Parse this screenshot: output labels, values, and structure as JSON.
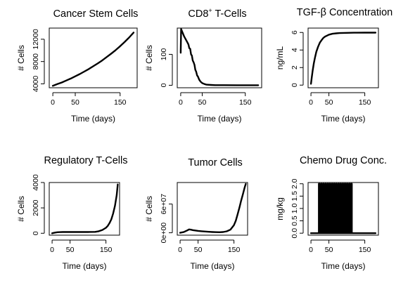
{
  "chart_data": [
    {
      "id": "csc",
      "type": "line",
      "title": "Cancer Stem Cells",
      "xlabel": "Time (days)",
      "ylabel": "# Cells",
      "xlim": [
        -8,
        188
      ],
      "ylim": [
        3300,
        14000
      ],
      "xticks": [
        0,
        50,
        150
      ],
      "xtick_labels": [
        "0",
        "50",
        "150"
      ],
      "yticks": [
        4000,
        8000,
        12000
      ],
      "ytick_labels": [
        "4000",
        "8000",
        "12000"
      ],
      "series": [
        {
          "x": [
            0,
            10,
            20,
            30,
            40,
            50,
            60,
            70,
            80,
            90,
            100,
            110,
            120,
            130,
            140,
            150,
            160,
            170,
            180
          ],
          "y": [
            3650,
            3950,
            4250,
            4600,
            4950,
            5350,
            5750,
            6200,
            6650,
            7150,
            7650,
            8200,
            8800,
            9400,
            10050,
            10750,
            11500,
            12300,
            13200
          ]
        }
      ]
    },
    {
      "id": "cd8",
      "type": "line",
      "title": "CD8",
      "title_sup": "+",
      "title_suffix": " T-Cells",
      "xlabel": "Time (days)",
      "ylabel": "# Cells",
      "xlim": [
        -8,
        188
      ],
      "ylim": [
        -8,
        185
      ],
      "xticks": [
        0,
        50,
        150
      ],
      "xtick_labels": [
        "0",
        "50",
        "150"
      ],
      "yticks": [
        0,
        100
      ],
      "ytick_labels": [
        "0",
        "100"
      ],
      "series": [
        {
          "x": [
            0,
            1,
            3,
            5,
            8,
            12,
            15,
            18,
            20,
            22,
            24,
            26,
            28,
            30,
            32,
            34,
            36,
            38,
            40,
            43,
            46,
            50,
            55,
            60,
            70,
            80,
            100,
            130,
            160,
            180
          ],
          "y": [
            105,
            182,
            175,
            168,
            158,
            148,
            140,
            132,
            120,
            118,
            100,
            96,
            80,
            74,
            66,
            50,
            44,
            32,
            28,
            18,
            12,
            7,
            4,
            2,
            1,
            0.5,
            0.3,
            0.2,
            0.2,
            0.2
          ]
        }
      ]
    },
    {
      "id": "tgf",
      "type": "line",
      "title": "TGF-β Concentration",
      "xlabel": "Time (days)",
      "ylabel": "ng/mL",
      "xlim": [
        -8,
        188
      ],
      "ylim": [
        -0.3,
        6.5
      ],
      "xticks": [
        0,
        50,
        150
      ],
      "xtick_labels": [
        "0",
        "50",
        "150"
      ],
      "yticks": [
        0,
        2,
        4,
        6
      ],
      "ytick_labels": [
        "0",
        "2",
        "4",
        "6"
      ],
      "series": [
        {
          "x": [
            0,
            2,
            5,
            8,
            11,
            15,
            20,
            25,
            30,
            35,
            40,
            50,
            60,
            70,
            80,
            90,
            100,
            120,
            150,
            180
          ],
          "y": [
            0.15,
            0.8,
            1.7,
            2.5,
            3.1,
            3.8,
            4.4,
            4.85,
            5.15,
            5.4,
            5.55,
            5.75,
            5.85,
            5.9,
            5.93,
            5.95,
            5.96,
            5.97,
            5.98,
            5.98
          ]
        }
      ]
    },
    {
      "id": "treg",
      "type": "line",
      "title": "Regulatory T-Cells",
      "xlabel": "Time (days)",
      "ylabel": "# Cells",
      "xlim": [
        -8,
        188
      ],
      "ylim": [
        -150,
        4000
      ],
      "xticks": [
        0,
        50,
        150
      ],
      "xtick_labels": [
        "0",
        "50",
        "150"
      ],
      "yticks": [
        0,
        2000,
        4000
      ],
      "ytick_labels": [
        "0",
        "2000",
        "4000"
      ],
      "series": [
        {
          "x": [
            0,
            5,
            10,
            15,
            20,
            30,
            50,
            80,
            100,
            120,
            130,
            140,
            150,
            155,
            160,
            165,
            170,
            175,
            180,
            183
          ],
          "y": [
            0,
            30,
            60,
            80,
            90,
            100,
            100,
            100,
            100,
            110,
            160,
            260,
            430,
            580,
            800,
            1100,
            1550,
            2150,
            3000,
            3850
          ]
        }
      ]
    },
    {
      "id": "tumor",
      "type": "line",
      "title": "Tumor Cells",
      "xlabel": "Time (days)",
      "ylabel": "# Cells",
      "xlim": [
        -8,
        188
      ],
      "ylim": [
        -5000000,
        105000000
      ],
      "xticks": [
        0,
        50,
        150
      ],
      "xtick_labels": [
        "0",
        "50",
        "150"
      ],
      "yticks": [
        0,
        60000000
      ],
      "ytick_labels": [
        "0e+00",
        "6e+07"
      ],
      "series": [
        {
          "x": [
            0,
            10,
            20,
            25,
            30,
            35,
            40,
            50,
            60,
            70,
            80,
            90,
            100,
            110,
            120,
            130,
            140,
            150,
            155,
            160,
            165,
            170,
            175,
            180,
            183
          ],
          "y": [
            0,
            1500000,
            5000000,
            7000000,
            6500000,
            5500000,
            5000000,
            4000000,
            3200000,
            2600000,
            2000000,
            1600000,
            1300000,
            1200000,
            1600000,
            3000000,
            6500000,
            16000000,
            25000000,
            38000000,
            52000000,
            67000000,
            81000000,
            95000000,
            102000000
          ]
        }
      ]
    },
    {
      "id": "chemo",
      "type": "line",
      "title": "Chemo Drug Conc.",
      "xlabel": "Time (days)",
      "ylabel": "mg/kg",
      "xlim": [
        -8,
        188
      ],
      "ylim": [
        -0.08,
        2.05
      ],
      "xticks": [
        0,
        50,
        150
      ],
      "xtick_labels": [
        "0",
        "50",
        "150"
      ],
      "yticks": [
        0,
        0.5,
        1.0,
        1.5,
        2.0
      ],
      "ytick_labels": [
        "0.0",
        "0.5",
        "1.0",
        "1.5",
        "2.0"
      ],
      "pulses": {
        "starts": [
          22,
          28,
          34,
          40,
          46,
          52,
          58,
          64,
          70,
          76,
          82,
          88,
          94,
          100,
          106,
          112
        ],
        "width": 2,
        "height": 2.0,
        "end": 180
      }
    }
  ]
}
